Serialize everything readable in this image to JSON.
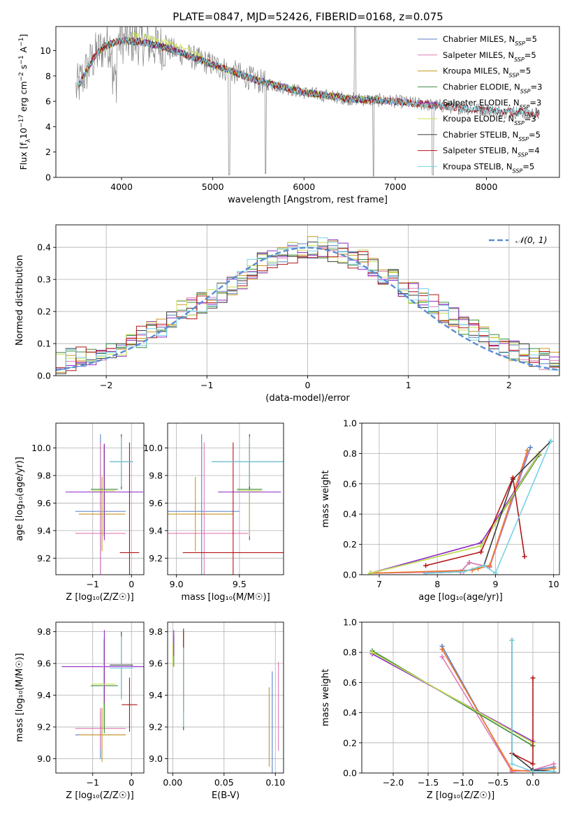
{
  "figure_title": "PLATE=0847, MJD=52426, FIBERID=0168, z=0.075",
  "colors": {
    "Chabrier MILES": "#5a82c8",
    "Salpeter MILES": "#e07ab4",
    "Kroupa MILES": "#c8961e",
    "Chabrier ELODIE": "#3c8c3c",
    "Salpeter ELODIE": "#8c28c8",
    "Kroupa ELODIE": "#c8e050",
    "Chabrier STELIB": "#3c3c3c",
    "Salpeter STELIB": "#b41414",
    "Kroupa STELIB": "#78d2e6",
    "data": "#808080",
    "normal": "#5a8cd2",
    "orange": "#f07828"
  },
  "chart_data": [
    {
      "id": "spectrum",
      "type": "line",
      "title": "PLATE=0847, MJD=52426, FIBERID=0168, z=0.075",
      "xlabel": "wavelength [Angstrom, rest frame]",
      "ylabel_parts": [
        "Flux [f",
        "λ",
        "10",
        "−17",
        " erg cm",
        "−2",
        " s",
        "−1",
        " A",
        "−1",
        "]"
      ],
      "xlim": [
        3280,
        8800
      ],
      "ylim": [
        0,
        11.9
      ],
      "xticks": [
        4000,
        5000,
        6000,
        7000,
        8000
      ],
      "yticks": [
        0,
        2,
        4,
        6,
        8,
        10
      ],
      "legend_position": "top-right",
      "legend": [
        {
          "label": "Chabrier MILES, N",
          "sub": "SSP",
          "value": "=5"
        },
        {
          "label": "Salpeter MILES, N",
          "sub": "SSP",
          "value": "=5"
        },
        {
          "label": "Kroupa MILES, N",
          "sub": "SSP",
          "value": "=5"
        },
        {
          "label": "Chabrier ELODIE, N",
          "sub": "SSP",
          "value": "=3"
        },
        {
          "label": "Salpeter ELODIE, N",
          "sub": "SSP",
          "value": "=3"
        },
        {
          "label": "Kroupa ELODIE, N",
          "sub": "SSP",
          "value": "=3"
        },
        {
          "label": "Chabrier STELIB, N",
          "sub": "SSP",
          "value": "=5"
        },
        {
          "label": "Salpeter STELIB, N",
          "sub": "SSP",
          "value": "=4"
        },
        {
          "label": "Kroupa STELIB, N",
          "sub": "SSP",
          "value": "=5"
        }
      ],
      "continuum": [
        [
          3500,
          6.9
        ],
        [
          3600,
          8.2
        ],
        [
          3700,
          9.5
        ],
        [
          3800,
          10.3
        ],
        [
          3900,
          10.6
        ],
        [
          4000,
          10.8
        ],
        [
          4200,
          10.7
        ],
        [
          4500,
          10.2
        ],
        [
          5000,
          8.9
        ],
        [
          5500,
          7.6
        ],
        [
          6000,
          6.7
        ],
        [
          6500,
          6.2
        ],
        [
          7000,
          6.0
        ],
        [
          7400,
          5.7
        ],
        [
          8000,
          5.3
        ],
        [
          8600,
          5.0
        ]
      ]
    },
    {
      "id": "residuals",
      "type": "line",
      "xlabel": "(data-model)/error",
      "ylabel": "Normed distribution",
      "xlim": [
        -2.5,
        2.5
      ],
      "ylim": [
        0,
        0.47
      ],
      "xticks": [
        -2,
        -1,
        0,
        1,
        2
      ],
      "yticks": [
        0.0,
        0.1,
        0.2,
        0.3,
        0.4
      ],
      "grid": true,
      "legend_position": "top-right",
      "legend_label": "𝒩(0, 1)",
      "bins": [
        -2.5,
        2.5,
        50
      ],
      "base_histogram": [
        0.04,
        0.05,
        0.055,
        0.06,
        0.07,
        0.08,
        0.09,
        0.1,
        0.12,
        0.14,
        0.15,
        0.17,
        0.2,
        0.21,
        0.23,
        0.24,
        0.26,
        0.28,
        0.3,
        0.33,
        0.35,
        0.36,
        0.37,
        0.38,
        0.39,
        0.4,
        0.4,
        0.39,
        0.38,
        0.37,
        0.36,
        0.34,
        0.32,
        0.3,
        0.28,
        0.26,
        0.24,
        0.22,
        0.2,
        0.18,
        0.16,
        0.14,
        0.12,
        0.1,
        0.09,
        0.08,
        0.07,
        0.06,
        0.05,
        0.04
      ]
    },
    {
      "id": "z-age",
      "type": "scatter",
      "xlabel": "Z [log₁₀(Z/Z☉)]",
      "ylabel": "age  [log₁₀(age/yr)]",
      "xlim": [
        -1.95,
        0.32
      ],
      "ylim": [
        9.08,
        10.18
      ],
      "xticks": [
        -1,
        0
      ],
      "yticks": [
        9.2,
        9.4,
        9.6,
        9.8,
        10.0
      ],
      "grid": true,
      "points": [
        {
          "s": "Chabrier MILES",
          "x": -0.8,
          "y": 9.54,
          "xe": 0.65,
          "ye": 0.56
        },
        {
          "s": "Salpeter MILES",
          "x": -0.8,
          "y": 9.38,
          "xe": 0.65,
          "ye": 0.66
        },
        {
          "s": "Kroupa MILES",
          "x": -0.76,
          "y": 9.52,
          "xe": 0.6,
          "ye": 0.27
        },
        {
          "s": "Chabrier ELODIE",
          "x": -0.7,
          "y": 9.7,
          "xe": 0.35,
          "ye": 0.33
        },
        {
          "s": "Salpeter ELODIE",
          "x": -0.7,
          "y": 9.68,
          "xe": 1.0,
          "ye": 0.35
        },
        {
          "s": "Kroupa ELODIE",
          "x": -0.72,
          "y": 9.69,
          "xe": 0.3,
          "ye": 0.33
        },
        {
          "s": "Chabrier STELIB",
          "x": -0.26,
          "y": 9.9,
          "xe": 0.3,
          "ye": 0.2
        },
        {
          "s": "Salpeter STELIB",
          "x": -0.05,
          "y": 9.24,
          "xe": 0.25,
          "ye": 0.8
        },
        {
          "s": "Kroupa STELIB",
          "x": -0.26,
          "y": 9.9,
          "xe": 0.3,
          "ye": 0.18
        }
      ]
    },
    {
      "id": "mass-age",
      "type": "scatter",
      "xlabel": "mass [log₁₀(M/M☉)]",
      "xlim": [
        8.93,
        9.85
      ],
      "ylim": [
        9.08,
        10.18
      ],
      "xticks": [
        9.0,
        9.5
      ],
      "yticks": [
        9.2,
        9.4,
        9.6,
        9.8,
        10.0
      ],
      "grid": true,
      "points": [
        {
          "s": "Chabrier MILES",
          "x": 9.2,
          "y": 9.54,
          "xe": 0.3,
          "ye": 0.56
        },
        {
          "s": "Salpeter MILES",
          "x": 9.22,
          "y": 9.38,
          "xe": 0.35,
          "ye": 0.66
        },
        {
          "s": "Kroupa MILES",
          "x": 9.15,
          "y": 9.52,
          "xe": 0.3,
          "ye": 0.27
        },
        {
          "s": "Chabrier ELODIE",
          "x": 9.58,
          "y": 9.7,
          "xe": 0.1,
          "ye": 0.33
        },
        {
          "s": "Salpeter ELODIE",
          "x": 9.58,
          "y": 9.68,
          "xe": 0.25,
          "ye": 0.35
        },
        {
          "s": "Kroupa ELODIE",
          "x": 9.58,
          "y": 9.69,
          "xe": 0.1,
          "ye": 0.33
        },
        {
          "s": "Chabrier STELIB",
          "x": 9.58,
          "y": 9.9,
          "xe": 0.3,
          "ye": 0.2
        },
        {
          "s": "Salpeter STELIB",
          "x": 9.45,
          "y": 9.24,
          "xe": 0.4,
          "ye": 0.8
        },
        {
          "s": "Kroupa STELIB",
          "x": 9.58,
          "y": 9.9,
          "xe": 0.3,
          "ye": 0.18
        }
      ]
    },
    {
      "id": "age-weight",
      "type": "line",
      "xlabel": "age  [log₁₀(age/yr)]",
      "ylabel": "mass weight",
      "xlim": [
        6.7,
        10.1
      ],
      "ylim": [
        0,
        1
      ],
      "xticks": [
        7,
        8,
        9,
        10
      ],
      "yticks": [
        0.0,
        0.2,
        0.4,
        0.6,
        0.8,
        1.0
      ],
      "grid": true,
      "series": [
        {
          "s": "Chabrier MILES",
          "points": [
            [
              6.85,
              0.01
            ],
            [
              8.4,
              0.02
            ],
            [
              8.55,
              0.08
            ],
            [
              8.9,
              0.05
            ],
            [
              9.6,
              0.84
            ]
          ]
        },
        {
          "s": "Salpeter MILES",
          "points": [
            [
              6.85,
              0.01
            ],
            [
              8.4,
              0.02
            ],
            [
              8.55,
              0.08
            ],
            [
              8.9,
              0.05
            ],
            [
              9.55,
              0.8
            ]
          ]
        },
        {
          "s": "Kroupa MILES",
          "points": [
            [
              6.85,
              0.01
            ],
            [
              8.6,
              0.03
            ],
            [
              8.7,
              0.04
            ],
            [
              8.9,
              0.06
            ],
            [
              9.55,
              0.82
            ]
          ]
        },
        {
          "s": "Chabrier ELODIE",
          "points": [
            [
              6.85,
              0.01
            ],
            [
              8.75,
              0.19
            ],
            [
              9.75,
              0.79
            ]
          ]
        },
        {
          "s": "Salpeter ELODIE",
          "points": [
            [
              6.85,
              0.01
            ],
            [
              8.75,
              0.21
            ],
            [
              9.75,
              0.8
            ]
          ]
        },
        {
          "s": "Kroupa ELODIE",
          "points": [
            [
              6.85,
              0.01
            ],
            [
              8.75,
              0.19
            ],
            [
              9.75,
              0.8
            ]
          ]
        },
        {
          "s": "Chabrier STELIB",
          "points": [
            [
              7.8,
              0.01
            ],
            [
              8.45,
              0.02
            ],
            [
              8.8,
              0.06
            ],
            [
              9.3,
              0.63
            ],
            [
              9.95,
              0.88
            ]
          ]
        },
        {
          "s": "Salpeter STELIB",
          "points": [
            [
              7.8,
              0.06
            ],
            [
              8.75,
              0.15
            ],
            [
              9.3,
              0.64
            ],
            [
              9.5,
              0.12
            ]
          ]
        },
        {
          "s": "Kroupa STELIB",
          "points": [
            [
              7.8,
              0.01
            ],
            [
              8.45,
              0.02
            ],
            [
              8.8,
              0.06
            ],
            [
              9.0,
              0.01
            ],
            [
              9.95,
              0.88
            ]
          ]
        }
      ]
    },
    {
      "id": "z-mass",
      "type": "scatter",
      "xlabel": "Z [log₁₀(Z/Z☉)]",
      "ylabel": "mass [log₁₀(M/M☉)]",
      "xlim": [
        -1.95,
        0.32
      ],
      "ylim": [
        8.91,
        9.86
      ],
      "xticks": [
        -1,
        0
      ],
      "yticks": [
        9.0,
        9.2,
        9.4,
        9.6,
        9.8
      ],
      "grid": true,
      "points": [
        {
          "s": "Chabrier MILES",
          "x": -0.8,
          "y": 9.15,
          "xe": 0.65,
          "ye": 0.15
        },
        {
          "s": "Salpeter MILES",
          "x": -0.8,
          "y": 9.19,
          "xe": 0.65,
          "ye": 0.13
        },
        {
          "s": "Kroupa MILES",
          "x": -0.76,
          "y": 9.15,
          "xe": 0.6,
          "ye": 0.17
        },
        {
          "s": "Chabrier ELODIE",
          "x": -0.7,
          "y": 9.46,
          "xe": 0.35,
          "ye": 0.3
        },
        {
          "s": "Salpeter ELODIE",
          "x": -0.7,
          "y": 9.58,
          "xe": 1.1,
          "ye": 0.23
        },
        {
          "s": "Kroupa ELODIE",
          "x": -0.72,
          "y": 9.47,
          "xe": 0.3,
          "ye": 0.28
        },
        {
          "s": "Chabrier STELIB",
          "x": -0.26,
          "y": 9.59,
          "xe": 0.3,
          "ye": 0.21
        },
        {
          "s": "Salpeter STELIB",
          "x": -0.05,
          "y": 9.34,
          "xe": 0.2,
          "ye": 0.17
        },
        {
          "s": "Kroupa STELIB",
          "x": -0.26,
          "y": 9.57,
          "xe": 0.3,
          "ye": 0.2
        }
      ]
    },
    {
      "id": "ebv-mass",
      "type": "scatter",
      "xlabel": "E(B-V)",
      "xlim": [
        -0.005,
        0.108
      ],
      "ylim": [
        8.91,
        9.86
      ],
      "xticks": [
        0.0,
        0.05,
        0.1
      ],
      "yticks": [
        9.0,
        9.2,
        9.4,
        9.6,
        9.8
      ],
      "grid": true,
      "points": [
        {
          "s": "Chabrier MILES",
          "x": 0.097,
          "y": 9.2,
          "ye": 0.35
        },
        {
          "s": "Salpeter MILES",
          "x": 0.103,
          "y": 9.33,
          "ye": 0.28
        },
        {
          "s": "Kroupa MILES",
          "x": 0.094,
          "y": 9.2,
          "ye": 0.25
        },
        {
          "s": "Chabrier ELODIE",
          "x": 0.001,
          "y": 9.68,
          "ye": 0.1
        },
        {
          "s": "Salpeter ELODIE",
          "x": 0.001,
          "y": 9.73,
          "ye": 0.08
        },
        {
          "s": "Kroupa ELODIE",
          "x": 0.0,
          "y": 9.65,
          "ye": 0.07
        },
        {
          "s": "Chabrier STELIB",
          "x": 0.0105,
          "y": 9.5,
          "ye": 0.32
        },
        {
          "s": "Salpeter STELIB",
          "x": 0.0105,
          "y": 9.55,
          "ye": 0.25
        },
        {
          "s": "Kroupa STELIB",
          "x": 0.0105,
          "y": 9.45,
          "ye": 0.25
        }
      ]
    },
    {
      "id": "z-weight",
      "type": "line",
      "xlabel": "Z [log₁₀(Z/Z☉)]",
      "ylabel": "mass weight",
      "xlim": [
        -2.45,
        0.38
      ],
      "ylim": [
        0,
        1
      ],
      "xticks": [
        -2.0,
        -1.5,
        -1.0,
        -0.5,
        0.0
      ],
      "yticks": [
        0.0,
        0.2,
        0.4,
        0.6,
        0.8,
        1.0
      ],
      "grid": true,
      "series": [
        {
          "s": "Chabrier MILES",
          "points": [
            [
              -1.3,
              0.84
            ],
            [
              -0.3,
              0.01
            ],
            [
              0.0,
              0.02
            ],
            [
              0.3,
              0.04
            ]
          ]
        },
        {
          "s": "Salpeter MILES",
          "points": [
            [
              -1.3,
              0.77
            ],
            [
              -0.3,
              0.01
            ],
            [
              0.0,
              0.02
            ],
            [
              0.3,
              0.06
            ]
          ]
        },
        {
          "s": "Kroupa MILES",
          "points": [
            [
              -1.3,
              0.82
            ],
            [
              -0.3,
              0.02
            ],
            [
              0.0,
              0.01
            ],
            [
              0.3,
              0.03
            ]
          ]
        },
        {
          "s": "Chabrier ELODIE",
          "points": [
            [
              -2.3,
              0.81
            ],
            [
              0.0,
              0.18
            ]
          ]
        },
        {
          "s": "Salpeter ELODIE",
          "points": [
            [
              -2.3,
              0.79
            ],
            [
              0.0,
              0.21
            ]
          ]
        },
        {
          "s": "Kroupa ELODIE",
          "points": [
            [
              -2.3,
              0.8
            ],
            [
              0.0,
              0.2
            ]
          ]
        },
        {
          "s": "Chabrier STELIB",
          "points": [
            [
              -0.3,
              0.88
            ],
            [
              -0.3,
              0.13
            ],
            [
              0.0,
              0.02
            ],
            [
              0.3,
              0.01
            ]
          ]
        },
        {
          "s": "Salpeter STELIB",
          "points": [
            [
              -0.3,
              0.13
            ],
            [
              0.0,
              0.06
            ],
            [
              0.0,
              0.63
            ]
          ]
        },
        {
          "s": "Kroupa STELIB",
          "points": [
            [
              -0.3,
              0.88
            ],
            [
              -0.3,
              0.06
            ],
            [
              0.0,
              0.01
            ],
            [
              0.3,
              0.01
            ]
          ]
        }
      ]
    }
  ]
}
